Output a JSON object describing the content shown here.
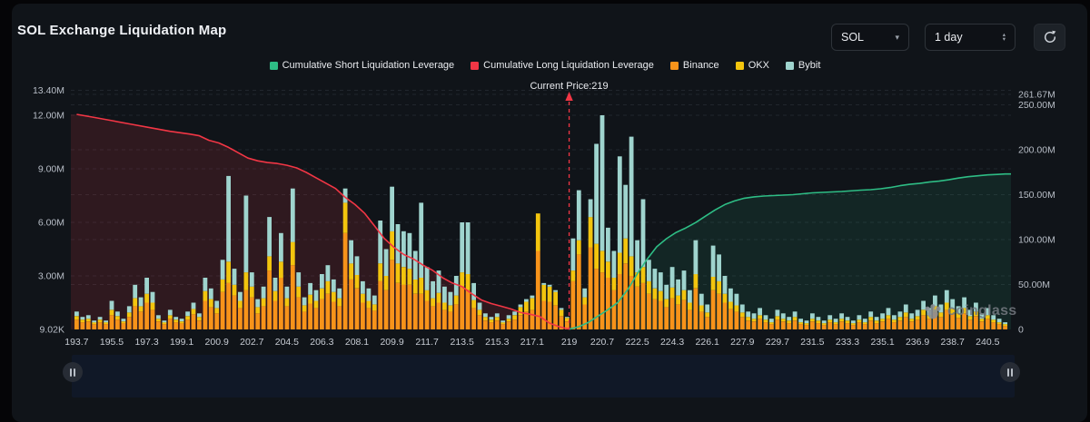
{
  "header": {
    "title": "SOL Exchange Liquidation Map"
  },
  "controls": {
    "symbol": {
      "value": "SOL"
    },
    "interval": {
      "value": "1 day"
    }
  },
  "legend": {
    "items": [
      {
        "label": "Cumulative Short Liquidation Leverage",
        "color": "#2ebd85"
      },
      {
        "label": "Cumulative Long Liquidation Leverage",
        "color": "#f23645"
      },
      {
        "label": "Binance",
        "color": "#f7931a"
      },
      {
        "label": "OKX",
        "color": "#f3c50e"
      },
      {
        "label": "Bybit",
        "color": "#9fd4ce"
      }
    ]
  },
  "watermark": {
    "text": "coinglass"
  },
  "chart_data": {
    "type": "bar",
    "subtype": "stacked exchange liquidation bars + cumulative leverage lines",
    "title": "SOL Exchange Liquidation Map",
    "current_price": 219,
    "current_price_label": "Current Price:219",
    "current_price_color": "#f23645",
    "x_axis": {
      "label": "price",
      "range": [
        193.4,
        241.7
      ],
      "ticks": [
        193.7,
        195.5,
        197.3,
        199.1,
        200.9,
        202.7,
        204.5,
        206.3,
        208.1,
        209.9,
        211.7,
        213.5,
        215.3,
        217.1,
        219,
        220.7,
        222.5,
        224.3,
        226.1,
        227.9,
        229.7,
        231.5,
        233.3,
        235.1,
        236.9,
        238.7,
        240.5
      ]
    },
    "left_axis": {
      "label": "liquidation value (per-price bars, cumulative long line)",
      "unit": "M",
      "range": [
        0,
        13.4
      ],
      "ticks": [
        {
          "label": "13.40M",
          "v": 13.4
        },
        {
          "label": "12.00M",
          "v": 12
        },
        {
          "label": "9.00M",
          "v": 9
        },
        {
          "label": "6.00M",
          "v": 6
        },
        {
          "label": "3.00M",
          "v": 3
        },
        {
          "label": "9.02K",
          "v": 0.00902
        }
      ]
    },
    "right_axis": {
      "label": "cumulative short liquidation leverage",
      "unit": "M",
      "range": [
        0,
        261.67
      ],
      "ticks": [
        {
          "label": "261.67M",
          "v": 261.67
        },
        {
          "label": "250.00M",
          "v": 250
        },
        {
          "label": "200.00M",
          "v": 200
        },
        {
          "label": "150.00M",
          "v": 150
        },
        {
          "label": "100.00M",
          "v": 100
        },
        {
          "label": "50.00M",
          "v": 50
        },
        {
          "label": "0",
          "v": 0
        }
      ]
    },
    "bars": {
      "stack_order": [
        "Binance",
        "OKX",
        "Bybit"
      ],
      "colors": {
        "Binance": "#f7931a",
        "OKX": "#f3c50e",
        "Bybit": "#9fd4ce"
      },
      "unit": "M",
      "x_start": 193.7,
      "x_step": 0.3,
      "stacks": [
        [
          0.55,
          0.2,
          0.25
        ],
        [
          0.4,
          0.15,
          0.15
        ],
        [
          0.45,
          0.15,
          0.2
        ],
        [
          0.3,
          0.1,
          0.1
        ],
        [
          0.4,
          0.15,
          0.15
        ],
        [
          0.3,
          0.1,
          0.1
        ],
        [
          0.8,
          0.3,
          0.5
        ],
        [
          0.55,
          0.2,
          0.25
        ],
        [
          0.35,
          0.1,
          0.15
        ],
        [
          0.7,
          0.25,
          0.35
        ],
        [
          1.3,
          0.45,
          0.75
        ],
        [
          1.0,
          0.3,
          0.5
        ],
        [
          1.5,
          0.5,
          0.9
        ],
        [
          1.1,
          0.4,
          0.6
        ],
        [
          0.45,
          0.15,
          0.2
        ],
        [
          0.3,
          0.1,
          0.1
        ],
        [
          0.6,
          0.2,
          0.3
        ],
        [
          0.4,
          0.15,
          0.15
        ],
        [
          0.35,
          0.1,
          0.15
        ],
        [
          0.55,
          0.2,
          0.25
        ],
        [
          0.85,
          0.3,
          0.35
        ],
        [
          0.5,
          0.2,
          0.2
        ],
        [
          1.6,
          0.55,
          0.75
        ],
        [
          1.25,
          0.45,
          0.6
        ],
        [
          0.9,
          0.3,
          0.4
        ],
        [
          2.1,
          0.7,
          1.1
        ],
        [
          2.6,
          1.2,
          4.8
        ],
        [
          1.9,
          0.6,
          0.9
        ],
        [
          1.2,
          0.4,
          0.5
        ],
        [
          2.2,
          1.0,
          4.3
        ],
        [
          1.8,
          0.6,
          0.8
        ],
        [
          0.9,
          0.35,
          0.45
        ],
        [
          1.3,
          0.45,
          0.65
        ],
        [
          3.3,
          0.8,
          2.2
        ],
        [
          1.6,
          0.55,
          0.75
        ],
        [
          2.9,
          0.9,
          1.6
        ],
        [
          1.3,
          0.45,
          0.65
        ],
        [
          3.6,
          1.3,
          3.0
        ],
        [
          1.8,
          0.6,
          0.8
        ],
        [
          1.0,
          0.35,
          0.45
        ],
        [
          1.45,
          0.5,
          0.65
        ],
        [
          1.2,
          0.4,
          0.6
        ],
        [
          1.7,
          0.6,
          0.8
        ],
        [
          2.0,
          0.7,
          0.9
        ],
        [
          1.55,
          0.55,
          0.7
        ],
        [
          1.3,
          0.45,
          0.55
        ],
        [
          5.4,
          1.7,
          0.8
        ],
        [
          2.8,
          0.9,
          1.3
        ],
        [
          2.3,
          0.75,
          1.05
        ],
        [
          1.5,
          0.5,
          0.7
        ],
        [
          1.2,
          0.4,
          0.7
        ],
        [
          1.05,
          0.35,
          0.5
        ],
        [
          2.7,
          1.0,
          2.4
        ],
        [
          2.2,
          0.8,
          1.5
        ],
        [
          3.9,
          1.6,
          2.5
        ],
        [
          2.6,
          1.1,
          2.2
        ],
        [
          2.5,
          1.0,
          2.0
        ],
        [
          2.5,
          0.9,
          2.0
        ],
        [
          2.0,
          0.8,
          1.6
        ],
        [
          2.0,
          0.9,
          4.2
        ],
        [
          1.6,
          0.6,
          1.3
        ],
        [
          1.3,
          0.45,
          0.95
        ],
        [
          1.5,
          0.55,
          1.25
        ],
        [
          1.1,
          0.4,
          0.9
        ],
        [
          1.0,
          0.35,
          0.75
        ],
        [
          1.4,
          0.5,
          1.1
        ],
        [
          2.4,
          0.8,
          2.8
        ],
        [
          2.2,
          0.9,
          2.9
        ],
        [
          1.2,
          0.45,
          0.95
        ],
        [
          0.8,
          0.3,
          0.4
        ],
        [
          0.5,
          0.2,
          0.2
        ],
        [
          0.4,
          0.15,
          0.15
        ],
        [
          0.5,
          0.2,
          0.2
        ],
        [
          0.3,
          0.1,
          0.1
        ],
        [
          0.45,
          0.15,
          0.2
        ],
        [
          0.55,
          0.25,
          0.2
        ],
        [
          0.8,
          0.45,
          0.15
        ],
        [
          1.0,
          0.55,
          0.15
        ],
        [
          1.1,
          0.65,
          0.15
        ],
        [
          4.4,
          2.1,
          0.0
        ],
        [
          1.6,
          0.9,
          0.1
        ],
        [
          1.55,
          0.85,
          0.1
        ],
        [
          1.35,
          0.75,
          0.1
        ],
        [
          0.75,
          0.35,
          0.1
        ],
        [
          0.45,
          0.2,
          0.05
        ],
        [
          2.7,
          0.6,
          1.8
        ],
        [
          4.2,
          0.8,
          2.8
        ],
        [
          1.4,
          0.4,
          0.5
        ],
        [
          4.6,
          1.7,
          1.0
        ],
        [
          3.4,
          1.4,
          5.6
        ],
        [
          3.2,
          1.2,
          7.6
        ],
        [
          2.9,
          0.9,
          1.9
        ],
        [
          2.2,
          0.7,
          1.5
        ],
        [
          3.1,
          1.2,
          5.4
        ],
        [
          3.7,
          1.4,
          3.0
        ],
        [
          3.0,
          1.1,
          6.7
        ],
        [
          2.4,
          0.8,
          1.8
        ],
        [
          2.6,
          0.9,
          3.8
        ],
        [
          2.0,
          0.7,
          1.2
        ],
        [
          1.7,
          0.6,
          1.1
        ],
        [
          1.6,
          0.55,
          1.05
        ],
        [
          1.25,
          0.45,
          0.8
        ],
        [
          1.75,
          0.6,
          1.15
        ],
        [
          1.4,
          0.5,
          0.9
        ],
        [
          1.65,
          0.55,
          1.1
        ],
        [
          1.1,
          0.4,
          0.7
        ],
        [
          2.3,
          0.8,
          1.9
        ],
        [
          1.0,
          0.35,
          0.65
        ],
        [
          0.7,
          0.25,
          0.45
        ],
        [
          2.2,
          0.75,
          1.75
        ],
        [
          2.0,
          0.7,
          1.5
        ],
        [
          1.5,
          0.5,
          1.0
        ],
        [
          1.15,
          0.4,
          0.75
        ],
        [
          1.0,
          0.35,
          0.65
        ],
        [
          0.7,
          0.25,
          0.45
        ],
        [
          0.5,
          0.2,
          0.3
        ],
        [
          0.45,
          0.15,
          0.3
        ],
        [
          0.6,
          0.2,
          0.4
        ],
        [
          0.4,
          0.15,
          0.25
        ],
        [
          0.3,
          0.1,
          0.2
        ],
        [
          0.55,
          0.2,
          0.35
        ],
        [
          0.45,
          0.15,
          0.3
        ],
        [
          0.35,
          0.15,
          0.2
        ],
        [
          0.5,
          0.2,
          0.3
        ],
        [
          0.3,
          0.1,
          0.2
        ],
        [
          0.25,
          0.1,
          0.15
        ],
        [
          0.45,
          0.15,
          0.3
        ],
        [
          0.35,
          0.15,
          0.2
        ],
        [
          0.25,
          0.1,
          0.15
        ],
        [
          0.4,
          0.15,
          0.25
        ],
        [
          0.3,
          0.1,
          0.2
        ],
        [
          0.45,
          0.15,
          0.3
        ],
        [
          0.35,
          0.15,
          0.2
        ],
        [
          0.25,
          0.1,
          0.15
        ],
        [
          0.4,
          0.15,
          0.25
        ],
        [
          0.3,
          0.1,
          0.2
        ],
        [
          0.5,
          0.2,
          0.3
        ],
        [
          0.35,
          0.15,
          0.2
        ],
        [
          0.45,
          0.15,
          0.3
        ],
        [
          0.6,
          0.2,
          0.4
        ],
        [
          0.4,
          0.15,
          0.25
        ],
        [
          0.5,
          0.2,
          0.3
        ],
        [
          0.7,
          0.25,
          0.45
        ],
        [
          0.45,
          0.15,
          0.3
        ],
        [
          0.55,
          0.2,
          0.35
        ],
        [
          0.8,
          0.3,
          0.5
        ],
        [
          0.6,
          0.2,
          0.4
        ],
        [
          0.95,
          0.35,
          0.6
        ],
        [
          0.7,
          0.25,
          0.45
        ],
        [
          1.1,
          0.4,
          0.7
        ],
        [
          0.85,
          0.3,
          0.55
        ],
        [
          0.65,
          0.25,
          0.4
        ],
        [
          0.9,
          0.3,
          0.6
        ],
        [
          0.55,
          0.2,
          0.35
        ],
        [
          0.75,
          0.25,
          0.5
        ],
        [
          0.45,
          0.15,
          0.3
        ],
        [
          0.6,
          0.2,
          0.4
        ],
        [
          0.4,
          0.15,
          0.25
        ],
        [
          0.3,
          0.1,
          0.2
        ],
        [
          0.2,
          0.1,
          0.1
        ]
      ]
    },
    "series": [
      {
        "name": "Cumulative Long Liquidation Leverage",
        "axis": "left",
        "color": "#f23645",
        "fill": "rgba(242,54,69,0.14)",
        "points": [
          [
            193.7,
            12.05
          ],
          [
            194.5,
            11.9
          ],
          [
            195.5,
            11.7
          ],
          [
            196.5,
            11.5
          ],
          [
            197.5,
            11.3
          ],
          [
            198.5,
            11.1
          ],
          [
            199.5,
            10.95
          ],
          [
            200,
            10.85
          ],
          [
            200.5,
            10.6
          ],
          [
            201,
            10.45
          ],
          [
            201.5,
            10.2
          ],
          [
            202,
            9.9
          ],
          [
            202.5,
            9.6
          ],
          [
            203,
            9.45
          ],
          [
            203.5,
            9.35
          ],
          [
            204,
            9.3
          ],
          [
            204.5,
            9.2
          ],
          [
            205,
            9.05
          ],
          [
            205.5,
            8.8
          ],
          [
            206,
            8.5
          ],
          [
            206.5,
            8.2
          ],
          [
            207,
            7.9
          ],
          [
            207.5,
            7.4
          ],
          [
            208,
            7.0
          ],
          [
            208.5,
            6.5
          ],
          [
            209,
            5.8
          ],
          [
            209.5,
            5.1
          ],
          [
            210,
            4.6
          ],
          [
            210.5,
            4.2
          ],
          [
            211,
            3.95
          ],
          [
            211.5,
            3.6
          ],
          [
            212,
            3.3
          ],
          [
            212.5,
            2.9
          ],
          [
            213,
            2.6
          ],
          [
            213.5,
            2.4
          ],
          [
            214,
            2.0
          ],
          [
            214.5,
            1.65
          ],
          [
            215,
            1.45
          ],
          [
            215.5,
            1.3
          ],
          [
            216,
            1.15
          ],
          [
            216.5,
            0.95
          ],
          [
            217,
            0.85
          ],
          [
            217.5,
            0.72
          ],
          [
            218,
            0.35
          ],
          [
            218.5,
            0.15
          ],
          [
            219,
            0.02
          ]
        ]
      },
      {
        "name": "Cumulative Short Liquidation Leverage",
        "axis": "right",
        "color": "#2ebd85",
        "fill": "rgba(46,189,133,0.11)",
        "points": [
          [
            219,
            0.3
          ],
          [
            219.5,
            3
          ],
          [
            220,
            8
          ],
          [
            220.5,
            15
          ],
          [
            221,
            22
          ],
          [
            221.5,
            30
          ],
          [
            222,
            44
          ],
          [
            222.5,
            62
          ],
          [
            223,
            78
          ],
          [
            223.5,
            92
          ],
          [
            224,
            101
          ],
          [
            224.5,
            108
          ],
          [
            225,
            113
          ],
          [
            225.5,
            119
          ],
          [
            226,
            126
          ],
          [
            226.5,
            133
          ],
          [
            227,
            139
          ],
          [
            227.5,
            143
          ],
          [
            228,
            146
          ],
          [
            228.5,
            147.5
          ],
          [
            229,
            148.5
          ],
          [
            229.5,
            149
          ],
          [
            230,
            149.5
          ],
          [
            230.5,
            150
          ],
          [
            231,
            151
          ],
          [
            231.5,
            152
          ],
          [
            232,
            152.5
          ],
          [
            233,
            153.5
          ],
          [
            234,
            155
          ],
          [
            234.5,
            155.5
          ],
          [
            235,
            156.5
          ],
          [
            235.5,
            158
          ],
          [
            236,
            160
          ],
          [
            236.5,
            161.5
          ],
          [
            237,
            162.5
          ],
          [
            237.5,
            164
          ],
          [
            238,
            165
          ],
          [
            238.5,
            166.5
          ],
          [
            239,
            168.5
          ],
          [
            239.5,
            170
          ],
          [
            240,
            171
          ],
          [
            240.5,
            172
          ],
          [
            241,
            172.5
          ],
          [
            241.4,
            173
          ]
        ]
      }
    ],
    "legend_position": "top-center",
    "grid": "horizontal dashed"
  }
}
